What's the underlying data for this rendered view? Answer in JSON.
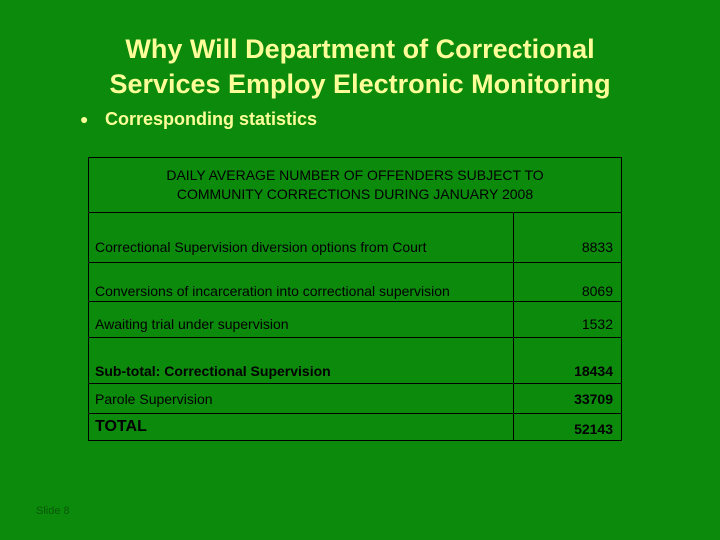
{
  "slide": {
    "title_line1": "Why Will Department of Correctional",
    "title_line2": "Services Employ Electronic Monitoring",
    "bullet": "Corresponding statistics",
    "slide_number": "Slide 8"
  },
  "table": {
    "caption_line1": "DAILY AVERAGE NUMBER OF OFFENDERS SUBJECT TO",
    "caption_line2": "COMMUNITY CORRECTIONS DURING JANUARY 2008",
    "rows": [
      {
        "label": "Correctional Supervision diversion options from Court",
        "value": "8833"
      },
      {
        "label": "Conversions of incarceration into correctional supervision",
        "value": "8069"
      },
      {
        "label": "Awaiting trial under supervision",
        "value": "1532"
      },
      {
        "label": "Sub-total: Correctional Supervision",
        "value": "18434"
      },
      {
        "label": "Parole Supervision",
        "value": "33709"
      },
      {
        "label": "TOTAL",
        "value": "52143"
      }
    ]
  },
  "colors": {
    "background": "#0b8a0b",
    "title": "#ffff99",
    "text": "#000000"
  }
}
